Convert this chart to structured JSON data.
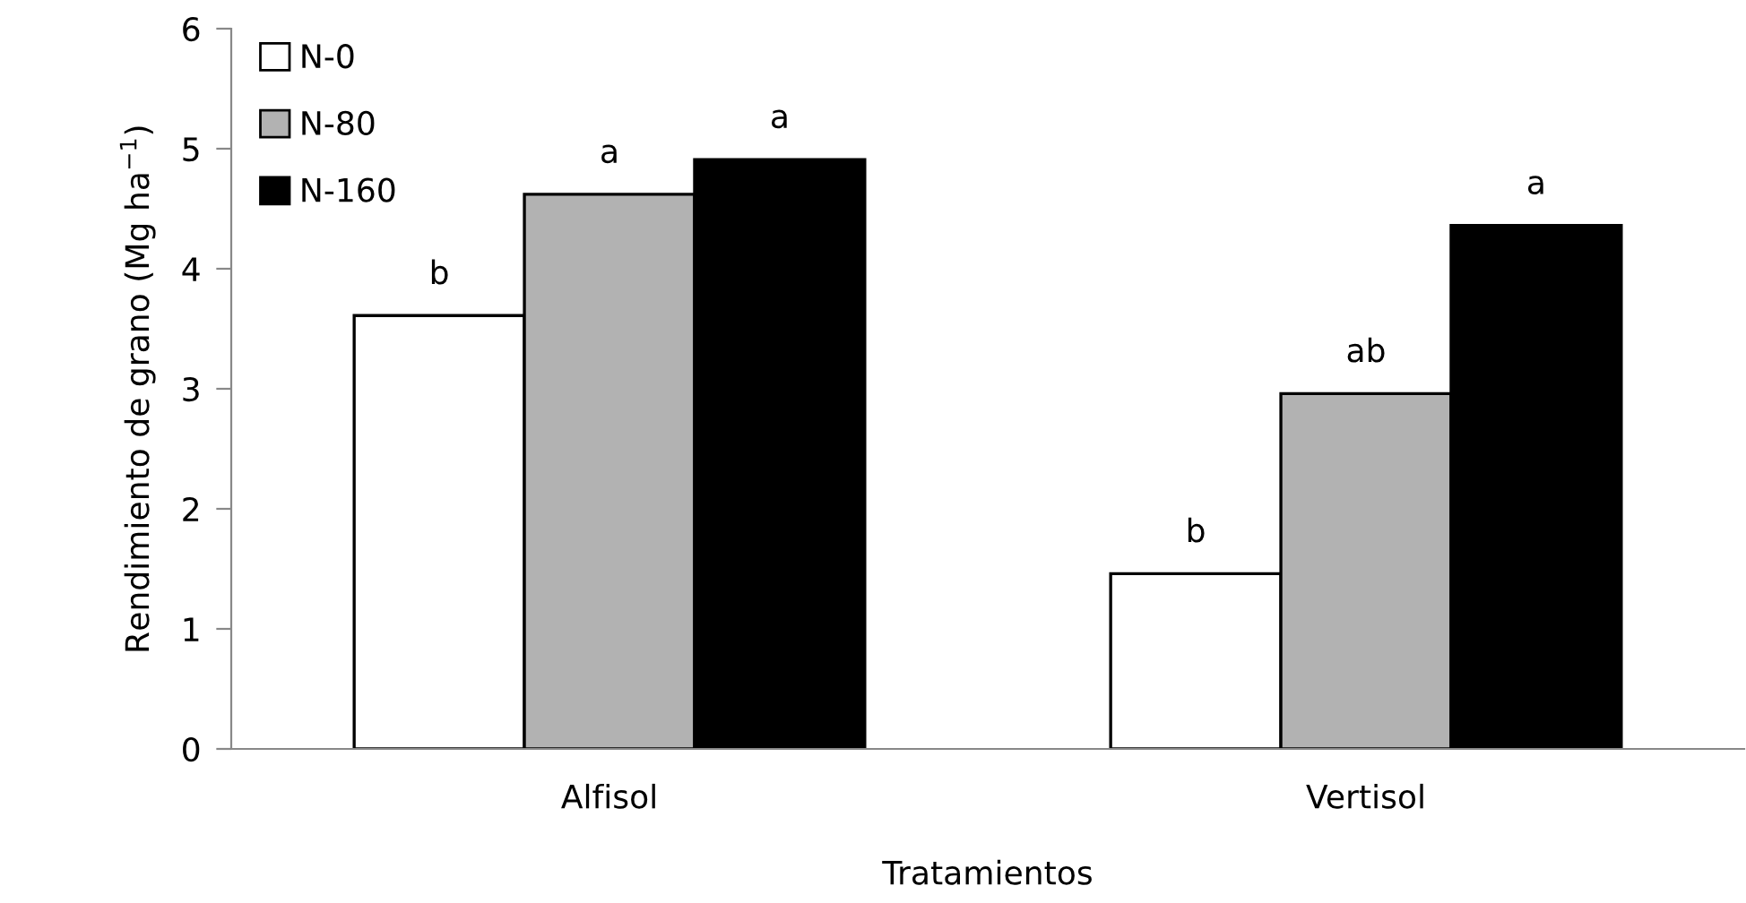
{
  "chart_data": {
    "type": "bar",
    "xlabel": "Tratamientos",
    "ylabel": "Rendimiento de grano (Mg ha$^{−1}$)",
    "categories": [
      "Alfisol",
      "Vertisol"
    ],
    "series": [
      {
        "name": "N-0",
        "color": "#ffffff",
        "values": [
          3.61,
          1.46
        ]
      },
      {
        "name": "N-80",
        "color": "#b2b2b2",
        "values": [
          4.62,
          2.96
        ]
      },
      {
        "name": "N-160",
        "color": "#000000",
        "values": [
          4.91,
          4.36
        ]
      }
    ],
    "ylim": [
      0,
      6
    ],
    "yticks": [
      0,
      1,
      2,
      3,
      4,
      5,
      6
    ],
    "grid": false,
    "legend": "top left",
    "annotations": [
      "b",
      "a",
      "a",
      "b",
      "ab",
      "a"
    ]
  }
}
